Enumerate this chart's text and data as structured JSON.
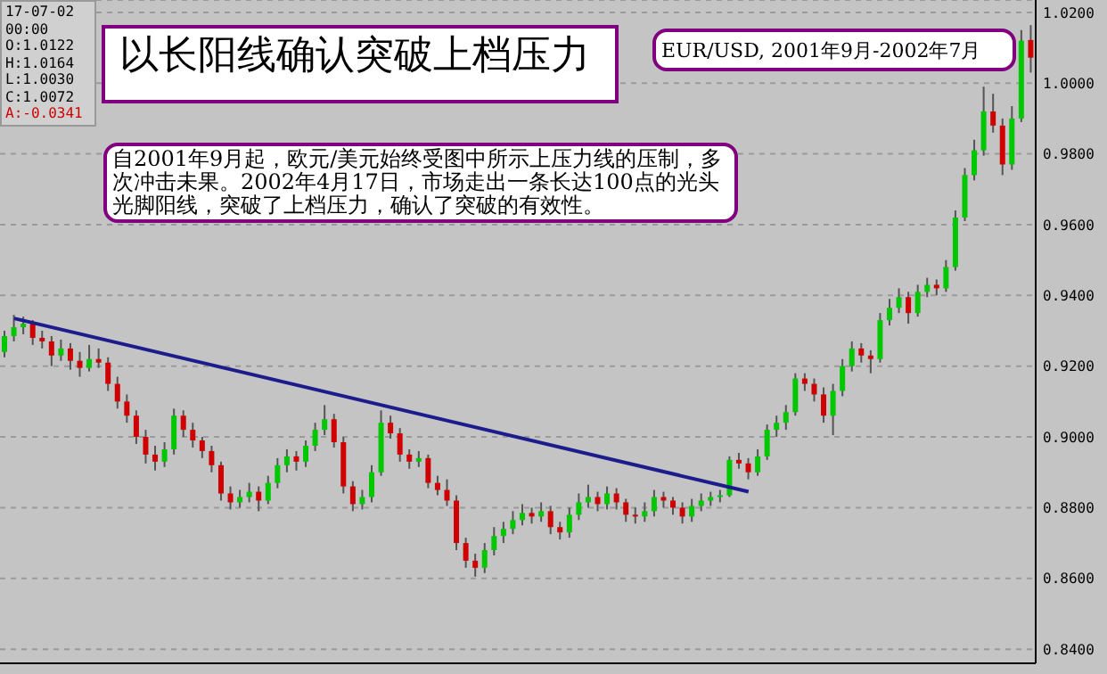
{
  "chart_data": {
    "type": "candlestick",
    "title": "以长阳线确认突破上档压力",
    "subtitle": "EUR/USD, 2001年9月-2002年7月",
    "annotations": [
      "自2001年9月起，欧元/美元始终受图中所示上压力线的压制，多次冲击未果。2002年4月17日，市场走出一条长达100点的光头光脚阳线，突破了上档压力，确认了突破的有效性。",
      "17-07-02",
      "00:00",
      "O:1.0122",
      "H:1.0164",
      "L:1.0030",
      "C:1.0072",
      "A:-0.0341"
    ],
    "categories": [
      null,
      null,
      null,
      null,
      null,
      null,
      null,
      null,
      null,
      null,
      null,
      null,
      null,
      null,
      null,
      null,
      null,
      null,
      null,
      null,
      null,
      null,
      null,
      null,
      null,
      null,
      null,
      null,
      null,
      null,
      null,
      null,
      null,
      null,
      null,
      null,
      null,
      null,
      null,
      null,
      null,
      null,
      null,
      null,
      null,
      null,
      null,
      null,
      null,
      null,
      null,
      null,
      null,
      null,
      null,
      null,
      null,
      null,
      null,
      null,
      null,
      null,
      null,
      null,
      null,
      null,
      null,
      null,
      null,
      null,
      null,
      null,
      null,
      null,
      null,
      null,
      null,
      null,
      null,
      null,
      null,
      null,
      null,
      null,
      null,
      null,
      null,
      null,
      null,
      null,
      null,
      null,
      null,
      null,
      null,
      null,
      null,
      null,
      null,
      null,
      null,
      null,
      null,
      null,
      null,
      null,
      null,
      null,
      null,
      null
    ],
    "ohlc": [
      [
        0.924,
        0.93,
        0.9225,
        0.9285
      ],
      [
        0.9285,
        0.9345,
        0.927,
        0.931
      ],
      [
        0.931,
        0.934,
        0.929,
        0.932
      ],
      [
        0.932,
        0.933,
        0.926,
        0.928
      ],
      [
        0.928,
        0.93,
        0.925,
        0.927
      ],
      [
        0.927,
        0.9285,
        0.92,
        0.923
      ],
      [
        0.923,
        0.9275,
        0.9215,
        0.925
      ],
      [
        0.925,
        0.9265,
        0.919,
        0.9215
      ],
      [
        0.9215,
        0.924,
        0.917,
        0.9195
      ],
      [
        0.9195,
        0.926,
        0.9185,
        0.922
      ],
      [
        0.922,
        0.925,
        0.9195,
        0.921
      ],
      [
        0.921,
        0.9225,
        0.913,
        0.915
      ],
      [
        0.915,
        0.917,
        0.908,
        0.91
      ],
      [
        0.91,
        0.912,
        0.904,
        0.906
      ],
      [
        0.906,
        0.9075,
        0.898,
        0.9
      ],
      [
        0.9,
        0.902,
        0.8925,
        0.895
      ],
      [
        0.895,
        0.8975,
        0.8905,
        0.893
      ],
      [
        0.893,
        0.8985,
        0.8915,
        0.8965
      ],
      [
        0.8965,
        0.908,
        0.895,
        0.906
      ],
      [
        0.906,
        0.9075,
        0.9,
        0.902
      ],
      [
        0.902,
        0.904,
        0.897,
        0.899
      ],
      [
        0.899,
        0.9,
        0.894,
        0.896
      ],
      [
        0.896,
        0.8975,
        0.89,
        0.892
      ],
      [
        0.892,
        0.893,
        0.882,
        0.884
      ],
      [
        0.884,
        0.886,
        0.8795,
        0.8815
      ],
      [
        0.8815,
        0.885,
        0.88,
        0.883
      ],
      [
        0.883,
        0.887,
        0.8815,
        0.8845
      ],
      [
        0.8845,
        0.886,
        0.879,
        0.882
      ],
      [
        0.882,
        0.889,
        0.881,
        0.887
      ],
      [
        0.887,
        0.894,
        0.8855,
        0.892
      ],
      [
        0.892,
        0.8965,
        0.89,
        0.8945
      ],
      [
        0.8945,
        0.896,
        0.8905,
        0.893
      ],
      [
        0.893,
        0.899,
        0.8915,
        0.8975
      ],
      [
        0.8975,
        0.904,
        0.896,
        0.902
      ],
      [
        0.902,
        0.909,
        0.9005,
        0.905
      ],
      [
        0.905,
        0.9065,
        0.897,
        0.8985
      ],
      [
        0.8985,
        0.9,
        0.884,
        0.886
      ],
      [
        0.886,
        0.8875,
        0.879,
        0.881
      ],
      [
        0.881,
        0.885,
        0.8795,
        0.883
      ],
      [
        0.883,
        0.892,
        0.8815,
        0.89
      ],
      [
        0.89,
        0.9075,
        0.889,
        0.904
      ],
      [
        0.904,
        0.906,
        0.8995,
        0.901
      ],
      [
        0.901,
        0.9025,
        0.893,
        0.895
      ],
      [
        0.895,
        0.8965,
        0.891,
        0.893
      ],
      [
        0.893,
        0.896,
        0.8915,
        0.894
      ],
      [
        0.894,
        0.895,
        0.8855,
        0.887
      ],
      [
        0.887,
        0.889,
        0.8835,
        0.885
      ],
      [
        0.885,
        0.888,
        0.8805,
        0.882
      ],
      [
        0.882,
        0.8835,
        0.868,
        0.87
      ],
      [
        0.87,
        0.8715,
        0.863,
        0.865
      ],
      [
        0.865,
        0.867,
        0.8605,
        0.863
      ],
      [
        0.863,
        0.87,
        0.8615,
        0.868
      ],
      [
        0.868,
        0.8745,
        0.8665,
        0.872
      ],
      [
        0.872,
        0.876,
        0.87,
        0.874
      ],
      [
        0.874,
        0.879,
        0.8725,
        0.8765
      ],
      [
        0.8765,
        0.881,
        0.875,
        0.8785
      ],
      [
        0.8785,
        0.88,
        0.8755,
        0.8775
      ],
      [
        0.8775,
        0.8815,
        0.876,
        0.879
      ],
      [
        0.879,
        0.8805,
        0.8725,
        0.8745
      ],
      [
        0.8745,
        0.876,
        0.871,
        0.873
      ],
      [
        0.873,
        0.88,
        0.8715,
        0.878
      ],
      [
        0.878,
        0.884,
        0.8765,
        0.8815
      ],
      [
        0.8815,
        0.8865,
        0.88,
        0.883
      ],
      [
        0.883,
        0.8845,
        0.879,
        0.881
      ],
      [
        0.881,
        0.886,
        0.8795,
        0.884
      ],
      [
        0.884,
        0.8855,
        0.8795,
        0.8815
      ],
      [
        0.8815,
        0.8825,
        0.876,
        0.878
      ],
      [
        0.878,
        0.88,
        0.8755,
        0.8775
      ],
      [
        0.8775,
        0.8815,
        0.876,
        0.879
      ],
      [
        0.879,
        0.885,
        0.8775,
        0.883
      ],
      [
        0.883,
        0.8845,
        0.88,
        0.882
      ],
      [
        0.882,
        0.883,
        0.878,
        0.88
      ],
      [
        0.88,
        0.8815,
        0.8755,
        0.8775
      ],
      [
        0.8775,
        0.8825,
        0.876,
        0.8805
      ],
      [
        0.8805,
        0.884,
        0.879,
        0.882
      ],
      [
        0.882,
        0.8845,
        0.8805,
        0.883
      ],
      [
        0.883,
        0.885,
        0.8815,
        0.8835
      ],
      [
        0.8835,
        0.8945,
        0.883,
        0.8935
      ],
      [
        0.8935,
        0.8955,
        0.891,
        0.8925
      ],
      [
        0.8925,
        0.894,
        0.888,
        0.89
      ],
      [
        0.89,
        0.8965,
        0.889,
        0.8945
      ],
      [
        0.8945,
        0.9035,
        0.8935,
        0.902
      ],
      [
        0.902,
        0.906,
        0.9,
        0.904
      ],
      [
        0.904,
        0.909,
        0.902,
        0.907
      ],
      [
        0.907,
        0.918,
        0.906,
        0.9165
      ],
      [
        0.9165,
        0.918,
        0.913,
        0.915
      ],
      [
        0.915,
        0.9165,
        0.91,
        0.912
      ],
      [
        0.912,
        0.914,
        0.904,
        0.906
      ],
      [
        0.906,
        0.915,
        0.9005,
        0.913
      ],
      [
        0.913,
        0.922,
        0.9115,
        0.92
      ],
      [
        0.92,
        0.927,
        0.9185,
        0.925
      ],
      [
        0.925,
        0.9265,
        0.921,
        0.923
      ],
      [
        0.923,
        0.9245,
        0.918,
        0.922
      ],
      [
        0.922,
        0.935,
        0.921,
        0.933
      ],
      [
        0.933,
        0.939,
        0.9315,
        0.9365
      ],
      [
        0.9365,
        0.942,
        0.935,
        0.9395
      ],
      [
        0.9395,
        0.941,
        0.932,
        0.935
      ],
      [
        0.935,
        0.943,
        0.934,
        0.941
      ],
      [
        0.941,
        0.945,
        0.9395,
        0.943
      ],
      [
        0.943,
        0.9445,
        0.94,
        0.942
      ],
      [
        0.942,
        0.95,
        0.941,
        0.948
      ],
      [
        0.948,
        0.964,
        0.947,
        0.962
      ],
      [
        0.962,
        0.976,
        0.961,
        0.974
      ],
      [
        0.974,
        0.984,
        0.9725,
        0.981
      ],
      [
        0.981,
        0.999,
        0.9795,
        0.992
      ],
      [
        0.992,
        0.997,
        0.986,
        0.988
      ],
      [
        0.988,
        0.99,
        0.974,
        0.977
      ],
      [
        0.977,
        0.9935,
        0.9755,
        0.99
      ],
      [
        0.99,
        1.015,
        0.989,
        1.012
      ],
      [
        1.0122,
        1.0164,
        1.003,
        1.0072
      ]
    ],
    "colors": [
      "#00c800",
      "#00c800",
      "#00c800",
      "#d00000",
      "#d00000",
      "#d00000",
      "#00c800",
      "#d00000",
      "#d00000",
      "#00c800",
      "#d00000",
      "#d00000",
      "#d00000",
      "#d00000",
      "#d00000",
      "#d00000",
      "#d00000",
      "#00c800",
      "#00c800",
      "#d00000",
      "#d00000",
      "#d00000",
      "#d00000",
      "#d00000",
      "#d00000",
      "#00c800",
      "#00c800",
      "#d00000",
      "#00c800",
      "#00c800",
      "#00c800",
      "#d00000",
      "#00c800",
      "#00c800",
      "#00c800",
      "#d00000",
      "#d00000",
      "#d00000",
      "#00c800",
      "#00c800",
      "#00c800",
      "#d00000",
      "#d00000",
      "#d00000",
      "#00c800",
      "#d00000",
      "#d00000",
      "#d00000",
      "#d00000",
      "#d00000",
      "#d00000",
      "#00c800",
      "#00c800",
      "#00c800",
      "#00c800",
      "#00c800",
      "#d00000",
      "#00c800",
      "#d00000",
      "#d00000",
      "#00c800",
      "#00c800",
      "#00c800",
      "#d00000",
      "#00c800",
      "#d00000",
      "#d00000",
      "#d00000",
      "#00c800",
      "#00c800",
      "#d00000",
      "#d00000",
      "#d00000",
      "#00c800",
      "#00c800",
      "#00c800",
      "#00c800",
      "#00c800",
      "#d00000",
      "#d00000",
      "#00c800",
      "#00c800",
      "#00c800",
      "#00c800",
      "#00c800",
      "#d00000",
      "#d00000",
      "#d00000",
      "#00c800",
      "#00c800",
      "#00c800",
      "#d00000",
      "#d00000",
      "#00c800",
      "#00c800",
      "#00c800",
      "#d00000",
      "#00c800",
      "#00c800",
      "#d00000",
      "#00c800",
      "#00c800",
      "#00c800",
      "#00c800",
      "#00c800",
      "#d00000",
      "#d00000",
      "#00c800",
      "#00c800",
      "#d00000"
    ],
    "series": [
      {
        "type": "line",
        "color": "#1c1c8c",
        "values": [
          null,
          0.9335,
          null,
          null,
          null,
          null,
          null,
          null,
          null,
          null,
          null,
          null,
          null,
          null,
          null,
          null,
          null,
          null,
          null,
          null,
          null,
          null,
          null,
          null,
          null,
          null,
          null,
          null,
          null,
          null,
          null,
          null,
          null,
          null,
          null,
          null,
          null,
          null,
          null,
          null,
          null,
          null,
          null,
          null,
          null,
          null,
          null,
          null,
          null,
          null,
          null,
          null,
          null,
          null,
          null,
          null,
          null,
          null,
          null,
          null,
          null,
          null,
          null,
          null,
          null,
          null,
          null,
          null,
          null,
          null,
          null,
          null,
          null,
          null,
          null,
          null,
          null,
          null,
          null,
          0.8845,
          null,
          null,
          null,
          null,
          null,
          null,
          null,
          null,
          null,
          null,
          null,
          null,
          null,
          null,
          null,
          null,
          null,
          null,
          null,
          null,
          null,
          null,
          null,
          null,
          null,
          null,
          null,
          null,
          null,
          null
        ]
      }
    ],
    "ylim": [
      0.836,
      1.0235
    ],
    "yticks": [
      {
        "value": 0.84,
        "label": "0.8400"
      },
      {
        "value": 0.86,
        "label": "0.8600"
      },
      {
        "value": 0.88,
        "label": "0.8800"
      },
      {
        "value": 0.9,
        "label": "0.9000"
      },
      {
        "value": 0.92,
        "label": "0.9200"
      },
      {
        "value": 0.94,
        "label": "0.9400"
      },
      {
        "value": 0.96,
        "label": "0.9600"
      },
      {
        "value": 0.98,
        "label": "0.9800"
      },
      {
        "value": 1.0,
        "label": "1.0000"
      },
      {
        "value": 1.02,
        "label": "1.0200"
      }
    ],
    "grid": "y",
    "tick_labels": "y"
  }
}
